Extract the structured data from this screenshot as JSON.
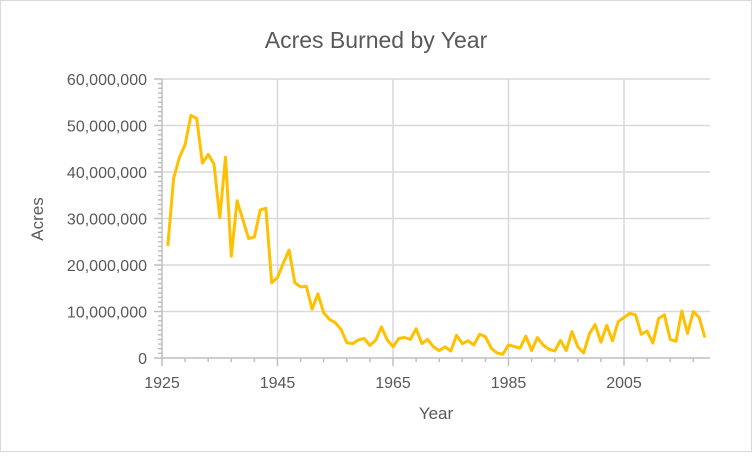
{
  "chart_data": {
    "type": "line",
    "title": "Acres Burned by Year",
    "xlabel": "Year",
    "ylabel": "Acres",
    "xlim": [
      1925,
      2019
    ],
    "ylim": [
      0,
      60000000
    ],
    "x_ticks": [
      1925,
      1945,
      1965,
      1985,
      2005
    ],
    "x_tick_labels": [
      "1925",
      "1945",
      "1965",
      "1985",
      "2005"
    ],
    "y_ticks": [
      0,
      10000000,
      20000000,
      30000000,
      40000000,
      50000000,
      60000000
    ],
    "y_tick_labels": [
      "0",
      "10,000,000",
      "20,000,000",
      "30,000,000",
      "40,000,000",
      "50,000,000",
      "60,000,000"
    ],
    "grid": "major vertical and horizontal",
    "legend": "none",
    "line_color": "#FFC000",
    "x": [
      1926,
      1927,
      1928,
      1929,
      1930,
      1931,
      1932,
      1933,
      1934,
      1935,
      1936,
      1937,
      1938,
      1939,
      1940,
      1941,
      1942,
      1943,
      1944,
      1945,
      1946,
      1947,
      1948,
      1949,
      1950,
      1951,
      1952,
      1953,
      1954,
      1955,
      1956,
      1957,
      1958,
      1959,
      1960,
      1961,
      1962,
      1963,
      1964,
      1965,
      1966,
      1967,
      1968,
      1969,
      1970,
      1971,
      1972,
      1973,
      1974,
      1975,
      1976,
      1977,
      1978,
      1979,
      1980,
      1981,
      1982,
      1983,
      1984,
      1985,
      1986,
      1987,
      1988,
      1989,
      1990,
      1991,
      1992,
      1993,
      1994,
      1995,
      1996,
      1997,
      1998,
      1999,
      2000,
      2001,
      2002,
      2003,
      2004,
      2005,
      2006,
      2007,
      2008,
      2009,
      2010,
      2011,
      2012,
      2013,
      2014,
      2015,
      2016,
      2017,
      2018,
      2019
    ],
    "values": [
      24100000,
      38600000,
      43100000,
      45900000,
      52200000,
      51500000,
      41900000,
      43800000,
      41700000,
      30200000,
      43200000,
      21900000,
      33800000,
      29800000,
      25700000,
      26000000,
      31800000,
      32200000,
      16200000,
      17300000,
      20400000,
      23200000,
      16200000,
      15300000,
      15400000,
      10500000,
      13800000,
      9700000,
      8300000,
      7600000,
      6200000,
      3300000,
      3100000,
      3900000,
      4200000,
      2700000,
      3800000,
      6700000,
      3900000,
      2400000,
      4200000,
      4400000,
      4000000,
      6300000,
      3100000,
      4000000,
      2400000,
      1600000,
      2400000,
      1500000,
      4900000,
      3100000,
      3700000,
      2800000,
      5100000,
      4600000,
      2100000,
      1100000,
      800000,
      2800000,
      2500000,
      2100000,
      4700000,
      1600000,
      4400000,
      2800000,
      1900000,
      1500000,
      3800000,
      1600000,
      5700000,
      2400000,
      1100000,
      5200000,
      7200000,
      3400000,
      7000000,
      3700000,
      7800000,
      8700000,
      9600000,
      9300000,
      5100000,
      5800000,
      3200000,
      8500000,
      9300000,
      4000000,
      3600000,
      10100000,
      5300000,
      10000000,
      8700000,
      4400000
    ]
  }
}
